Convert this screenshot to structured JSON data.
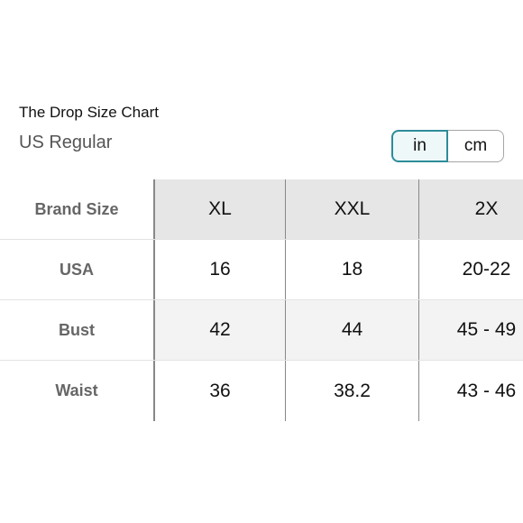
{
  "header": {
    "title": "The Drop Size Chart",
    "subtitle": "US Regular"
  },
  "unit_toggle": {
    "selected": "in",
    "options": [
      "in",
      "cm"
    ]
  },
  "table": {
    "header": {
      "label": "Brand Size",
      "cells": [
        "XL",
        "XXL",
        "2X"
      ]
    },
    "rows": [
      {
        "label": "USA",
        "cells": [
          "16",
          "18",
          "20-22"
        ]
      },
      {
        "label": "Bust",
        "cells": [
          "42",
          "44",
          "45 - 49"
        ]
      },
      {
        "label": "Waist",
        "cells": [
          "36",
          "38.2",
          "43 - 46"
        ]
      }
    ]
  }
}
